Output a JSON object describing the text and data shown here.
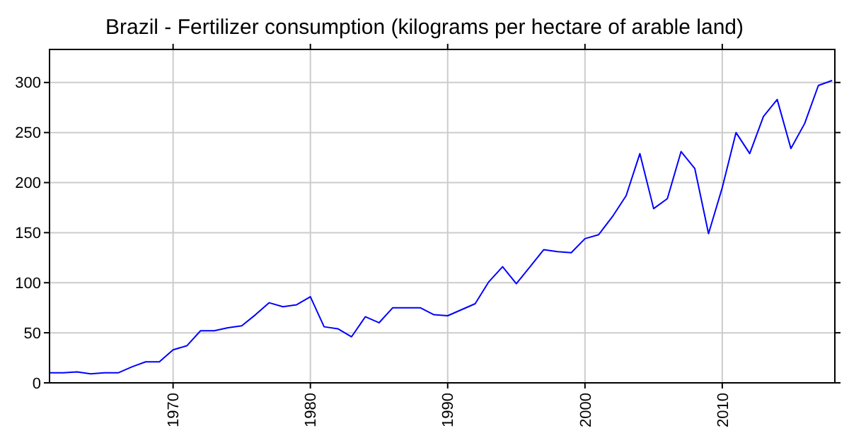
{
  "chart_data": {
    "type": "line",
    "title": "Brazil - Fertilizer consumption (kilograms per hectare of arable land)",
    "x": [
      1961,
      1962,
      1963,
      1964,
      1965,
      1966,
      1967,
      1968,
      1969,
      1970,
      1971,
      1972,
      1973,
      1974,
      1975,
      1976,
      1977,
      1978,
      1979,
      1980,
      1981,
      1982,
      1983,
      1984,
      1985,
      1986,
      1987,
      1988,
      1989,
      1990,
      1991,
      1992,
      1993,
      1994,
      1995,
      1996,
      1997,
      1998,
      1999,
      2000,
      2001,
      2002,
      2003,
      2004,
      2005,
      2006,
      2007,
      2008,
      2009,
      2010,
      2011,
      2012,
      2013,
      2014,
      2015,
      2016,
      2017,
      2018
    ],
    "series": [
      {
        "color": "#0000ff",
        "values": [
          10,
          10,
          11,
          9,
          10,
          10,
          16,
          21,
          21,
          33,
          37,
          52,
          52,
          55,
          57,
          68,
          80,
          76,
          78,
          86,
          56,
          54,
          46,
          66,
          60,
          75,
          75,
          75,
          68,
          67,
          73,
          79,
          101,
          116,
          99,
          116,
          133,
          131,
          130,
          144,
          148,
          166,
          187,
          229,
          174,
          184,
          231,
          214,
          149,
          195,
          250,
          229,
          266,
          283,
          234,
          259,
          297,
          302
        ]
      }
    ],
    "xlim": [
      1961,
      2018.2
    ],
    "xticks": [
      1970,
      1980,
      1990,
      2000,
      2010
    ],
    "ylim": [
      0,
      333
    ],
    "yticks": [
      0,
      50,
      100,
      150,
      200,
      250,
      300
    ],
    "grid": true
  }
}
